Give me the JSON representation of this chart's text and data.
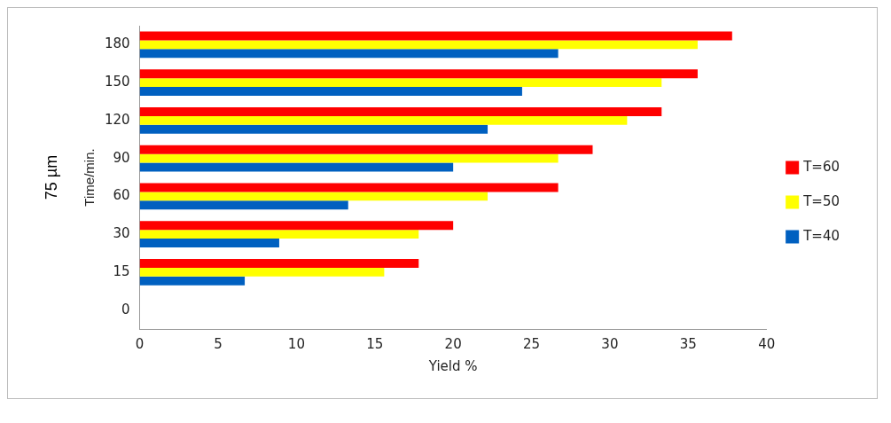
{
  "chart_data": {
    "type": "bar",
    "orientation": "horizontal",
    "xlabel": "Yield %",
    "ylabel": "Time/min.",
    "categories": [
      "180",
      "150",
      "120",
      "90",
      "60",
      "30",
      "15",
      "0"
    ],
    "series": [
      {
        "name": "T=60",
        "color": "#ff0000",
        "values": [
          37.8,
          35.6,
          33.3,
          28.9,
          26.7,
          20,
          17.8,
          null
        ]
      },
      {
        "name": "T=50",
        "color": "#ffff00",
        "values": [
          35.6,
          33.3,
          31.1,
          26.7,
          22.2,
          17.8,
          15.6,
          null
        ]
      },
      {
        "name": "T=40",
        "color": "#0060c0",
        "values": [
          26.7,
          24.4,
          22.2,
          20,
          13.3,
          8.9,
          6.7,
          null
        ]
      }
    ],
    "xlim": [
      0,
      40
    ],
    "xticks": [
      0,
      5,
      10,
      15,
      20,
      25,
      30,
      35,
      40
    ],
    "grid": false,
    "legend": "right",
    "annotations": [
      "75 µm"
    ]
  }
}
